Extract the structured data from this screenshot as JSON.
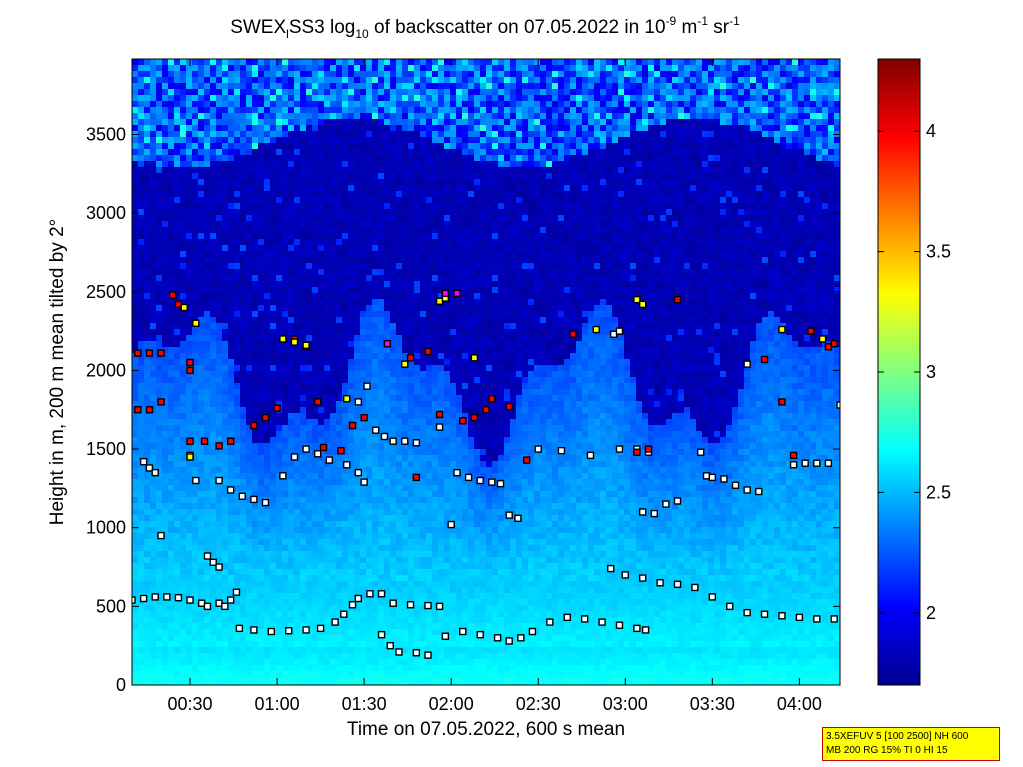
{
  "chart_data": {
    "type": "heatmap",
    "title": {
      "prefix": "SWEX",
      "sub_i": "l",
      "mid": "SS3 log",
      "sub_10": "10",
      "rest": " of backscatter on 07.05.2022 in 10",
      "sup_neg9": "-9",
      "units_m": " m",
      "sup_neg1a": "-1",
      "units_sr": " sr",
      "sup_neg1b": "-1"
    },
    "xlabel": "Time on 07.05.2022, 600 s mean",
    "ylabel": "Height in m, 200 m mean tilted by 2°",
    "x_ticks": [
      "00:30",
      "01:00",
      "01:30",
      "02:00",
      "02:30",
      "03:00",
      "03:30",
      "04:00"
    ],
    "x_tick_minutes": [
      30,
      60,
      90,
      120,
      150,
      180,
      210,
      240
    ],
    "x_range_minutes": [
      10,
      254
    ],
    "y_ticks": [
      "0",
      "500",
      "1000",
      "1500",
      "2000",
      "2500",
      "3000",
      "3500"
    ],
    "y_tick_values": [
      0,
      500,
      1000,
      1500,
      2000,
      2500,
      3000,
      3500
    ],
    "y_range": [
      0,
      3980
    ],
    "colorbar": {
      "range": [
        1.7,
        4.3
      ],
      "ticks": [
        "2",
        "2.5",
        "3",
        "3.5",
        "4"
      ],
      "tick_values": [
        2,
        2.5,
        3,
        3.5,
        4
      ],
      "colormap": "jet"
    },
    "layers": {
      "surface_layer_top_m": 250,
      "aerosol_layer_top_min_m": 1400,
      "aerosol_layer_top_max_m": 2500,
      "upper_cloud_base_m": 3450
    },
    "marker_series": [
      {
        "color": "#ffffff",
        "points": [
          [
            10,
            540
          ],
          [
            14,
            550
          ],
          [
            18,
            560
          ],
          [
            22,
            560
          ],
          [
            26,
            555
          ],
          [
            30,
            540
          ],
          [
            34,
            520
          ],
          [
            36,
            500
          ],
          [
            40,
            520
          ],
          [
            42,
            500
          ],
          [
            44,
            540
          ],
          [
            46,
            590
          ],
          [
            47,
            360
          ],
          [
            52,
            350
          ],
          [
            58,
            340
          ],
          [
            64,
            345
          ],
          [
            70,
            350
          ],
          [
            75,
            360
          ],
          [
            80,
            400
          ],
          [
            83,
            450
          ],
          [
            86,
            510
          ],
          [
            88,
            550
          ],
          [
            92,
            580
          ],
          [
            96,
            580
          ],
          [
            100,
            520
          ],
          [
            106,
            510
          ],
          [
            112,
            505
          ],
          [
            116,
            500
          ],
          [
            96,
            320
          ],
          [
            99,
            250
          ],
          [
            102,
            210
          ],
          [
            108,
            205
          ],
          [
            112,
            190
          ],
          [
            118,
            310
          ],
          [
            124,
            340
          ],
          [
            130,
            320
          ],
          [
            136,
            300
          ],
          [
            140,
            280
          ],
          [
            144,
            300
          ],
          [
            148,
            340
          ],
          [
            154,
            400
          ],
          [
            160,
            430
          ],
          [
            166,
            420
          ],
          [
            172,
            400
          ],
          [
            178,
            380
          ],
          [
            184,
            360
          ],
          [
            187,
            350
          ],
          [
            175,
            740
          ],
          [
            180,
            700
          ],
          [
            186,
            680
          ],
          [
            192,
            650
          ],
          [
            198,
            640
          ],
          [
            204,
            620
          ],
          [
            210,
            560
          ],
          [
            216,
            500
          ],
          [
            222,
            460
          ],
          [
            228,
            450
          ],
          [
            234,
            440
          ],
          [
            240,
            430
          ],
          [
            246,
            420
          ],
          [
            252,
            420
          ],
          [
            14,
            1420
          ],
          [
            16,
            1380
          ],
          [
            18,
            1350
          ],
          [
            30,
            1460
          ],
          [
            40,
            1300
          ],
          [
            44,
            1240
          ],
          [
            48,
            1200
          ],
          [
            52,
            1180
          ],
          [
            56,
            1160
          ],
          [
            62,
            1330
          ],
          [
            66,
            1450
          ],
          [
            70,
            1500
          ],
          [
            74,
            1470
          ],
          [
            78,
            1430
          ],
          [
            84,
            1400
          ],
          [
            88,
            1350
          ],
          [
            90,
            1290
          ],
          [
            88,
            1800
          ],
          [
            91,
            1900
          ],
          [
            94,
            1620
          ],
          [
            97,
            1580
          ],
          [
            100,
            1550
          ],
          [
            104,
            1550
          ],
          [
            108,
            1540
          ],
          [
            122,
            1350
          ],
          [
            126,
            1320
          ],
          [
            130,
            1300
          ],
          [
            134,
            1290
          ],
          [
            137,
            1280
          ],
          [
            140,
            1080
          ],
          [
            143,
            1060
          ],
          [
            150,
            1500
          ],
          [
            158,
            1490
          ],
          [
            168,
            1460
          ],
          [
            176,
            2230
          ],
          [
            178,
            2250
          ],
          [
            178,
            1500
          ],
          [
            184,
            1500
          ],
          [
            188,
            1480
          ],
          [
            186,
            1100
          ],
          [
            190,
            1090
          ],
          [
            194,
            1150
          ],
          [
            198,
            1170
          ],
          [
            206,
            1480
          ],
          [
            208,
            1330
          ],
          [
            210,
            1320
          ],
          [
            214,
            1310
          ],
          [
            218,
            1270
          ],
          [
            222,
            1240
          ],
          [
            226,
            1230
          ],
          [
            222,
            2040
          ],
          [
            238,
            1400
          ],
          [
            242,
            1410
          ],
          [
            246,
            1410
          ],
          [
            250,
            1410
          ],
          [
            254,
            1780
          ],
          [
            20,
            950
          ],
          [
            32,
            1300
          ],
          [
            36,
            820
          ],
          [
            38,
            780
          ],
          [
            40,
            750
          ],
          [
            120,
            1020
          ],
          [
            116,
            1640
          ]
        ]
      },
      {
        "color": "#ff0000",
        "points": [
          [
            12,
            2110
          ],
          [
            16,
            2110
          ],
          [
            20,
            2110
          ],
          [
            12,
            1750
          ],
          [
            16,
            1750
          ],
          [
            20,
            1800
          ],
          [
            24,
            2480
          ],
          [
            26,
            2420
          ],
          [
            30,
            2000
          ],
          [
            30,
            2050
          ],
          [
            30,
            1550
          ],
          [
            35,
            1550
          ],
          [
            40,
            1520
          ],
          [
            44,
            1550
          ],
          [
            52,
            1650
          ],
          [
            56,
            1700
          ],
          [
            60,
            1760
          ],
          [
            66,
            2200
          ],
          [
            70,
            2150
          ],
          [
            74,
            1800
          ],
          [
            76,
            1510
          ],
          [
            82,
            1490
          ],
          [
            86,
            1650
          ],
          [
            90,
            1700
          ],
          [
            106,
            2080
          ],
          [
            108,
            1320
          ],
          [
            112,
            2120
          ],
          [
            116,
            1720
          ],
          [
            124,
            1680
          ],
          [
            128,
            1700
          ],
          [
            132,
            1750
          ],
          [
            134,
            1820
          ],
          [
            140,
            1770
          ],
          [
            146,
            1430
          ],
          [
            162,
            2230
          ],
          [
            184,
            1480
          ],
          [
            188,
            1500
          ],
          [
            198,
            2450
          ],
          [
            228,
            2070
          ],
          [
            234,
            1800
          ],
          [
            238,
            1460
          ],
          [
            244,
            2250
          ],
          [
            250,
            2150
          ],
          [
            252,
            2170
          ]
        ]
      },
      {
        "color": "#ffff00",
        "points": [
          [
            28,
            2400
          ],
          [
            32,
            2300
          ],
          [
            30,
            1450
          ],
          [
            62,
            2200
          ],
          [
            66,
            2180
          ],
          [
            70,
            2160
          ],
          [
            84,
            1820
          ],
          [
            104,
            2040
          ],
          [
            116,
            2440
          ],
          [
            118,
            2460
          ],
          [
            128,
            2080
          ],
          [
            170,
            2260
          ],
          [
            184,
            2450
          ],
          [
            186,
            2420
          ],
          [
            234,
            2260
          ],
          [
            248,
            2200
          ]
        ]
      },
      {
        "color": "#ff00ff",
        "points": [
          [
            98,
            2170
          ],
          [
            118,
            2490
          ],
          [
            122,
            2490
          ]
        ]
      }
    ]
  },
  "info_box": {
    "line1": "3.5XEFUV 5 [100 2500] NH 600",
    "line2": "MB 200 RG 15% TI 0 HI 15"
  }
}
